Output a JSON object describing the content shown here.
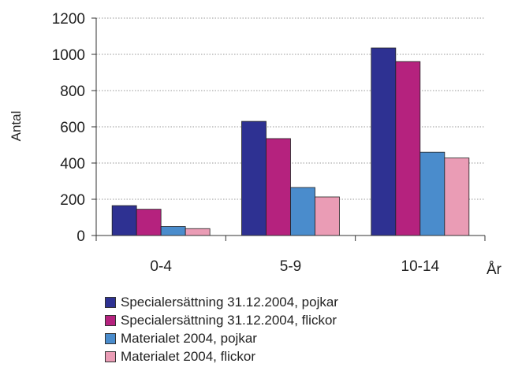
{
  "chart_data": {
    "type": "bar",
    "title": "",
    "xlabel": "År",
    "ylabel": "Antal",
    "ylim": [
      0,
      1200
    ],
    "yticks": [
      0,
      200,
      400,
      600,
      800,
      1000,
      1200
    ],
    "grid": true,
    "legend_position": "bottom",
    "categories": [
      "0-4",
      "5-9",
      "10-14"
    ],
    "series": [
      {
        "name": "Specialersättning 31.12.2004, pojkar",
        "color": "#2e3192",
        "values": [
          165,
          630,
          1035
        ]
      },
      {
        "name": "Specialersättning 31.12.2004, flickor",
        "color": "#b5227e",
        "values": [
          145,
          535,
          960
        ]
      },
      {
        "name": "Materialet 2004, pojkar",
        "color": "#4a8ccc",
        "values": [
          50,
          265,
          460
        ]
      },
      {
        "name": "Materialet 2004, flickor",
        "color": "#ea9cb5",
        "values": [
          38,
          213,
          428
        ]
      }
    ]
  }
}
